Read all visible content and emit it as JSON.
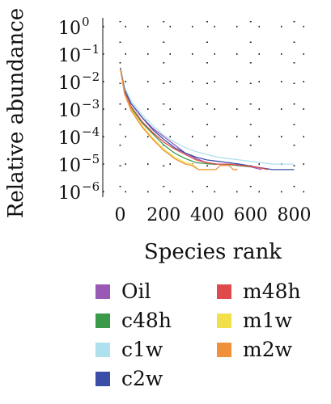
{
  "chart_data": {
    "type": "line",
    "xlabel": "Species rank",
    "ylabel": "Relative abundance",
    "x_ticks": [
      0,
      200,
      400,
      600,
      800
    ],
    "y_ticks": [
      {
        "value": 0,
        "base": "10",
        "exp": "0"
      },
      {
        "value": -1,
        "base": "10",
        "exp": "−1"
      },
      {
        "value": -2,
        "base": "10",
        "exp": "−2"
      },
      {
        "value": -3,
        "base": "10",
        "exp": "−3"
      },
      {
        "value": -4,
        "base": "10",
        "exp": "−4"
      },
      {
        "value": -5,
        "base": "10",
        "exp": "−5"
      },
      {
        "value": -6,
        "base": "10",
        "exp": "−6"
      }
    ],
    "x_range": [
      -80,
      880
    ],
    "y_scale": "log",
    "y_range_log10": [
      -6.2,
      0.2
    ],
    "grid": "dotted",
    "legend_position": "bottom",
    "series": [
      {
        "name": "Oil",
        "color": "#9b59b6",
        "points": [
          [
            1,
            -1.5
          ],
          [
            20,
            -2.3
          ],
          [
            50,
            -2.8
          ],
          [
            100,
            -3.3
          ],
          [
            150,
            -3.7
          ],
          [
            200,
            -4.0
          ],
          [
            250,
            -4.3
          ],
          [
            300,
            -4.6
          ],
          [
            350,
            -4.8
          ],
          [
            400,
            -4.95
          ],
          [
            430,
            -5.0
          ],
          [
            500,
            -5.0
          ],
          [
            560,
            -5.05
          ],
          [
            600,
            -5.1
          ],
          [
            650,
            -5.2
          ]
        ]
      },
      {
        "name": "c48h",
        "color": "#3a9a4a",
        "points": [
          [
            1,
            -1.55
          ],
          [
            20,
            -2.4
          ],
          [
            50,
            -2.95
          ],
          [
            100,
            -3.5
          ],
          [
            150,
            -3.9
          ],
          [
            200,
            -4.3
          ],
          [
            250,
            -4.6
          ],
          [
            300,
            -4.8
          ],
          [
            350,
            -4.95
          ],
          [
            420,
            -5.0
          ],
          [
            480,
            -5.0
          ],
          [
            540,
            -5.05
          ],
          [
            600,
            -5.1
          ]
        ]
      },
      {
        "name": "c1w",
        "color": "#aee0ee",
        "points": [
          [
            1,
            -1.5
          ],
          [
            20,
            -2.2
          ],
          [
            50,
            -2.7
          ],
          [
            100,
            -3.2
          ],
          [
            150,
            -3.6
          ],
          [
            200,
            -3.95
          ],
          [
            250,
            -4.2
          ],
          [
            300,
            -4.4
          ],
          [
            350,
            -4.55
          ],
          [
            400,
            -4.65
          ],
          [
            450,
            -4.75
          ],
          [
            500,
            -4.8
          ],
          [
            550,
            -4.85
          ],
          [
            600,
            -4.9
          ],
          [
            650,
            -4.95
          ],
          [
            700,
            -5.0
          ],
          [
            800,
            -5.0
          ]
        ]
      },
      {
        "name": "c2w",
        "color": "#3a4ea8",
        "points": [
          [
            1,
            -1.5
          ],
          [
            20,
            -2.3
          ],
          [
            50,
            -2.8
          ],
          [
            100,
            -3.3
          ],
          [
            150,
            -3.75
          ],
          [
            200,
            -4.1
          ],
          [
            250,
            -4.4
          ],
          [
            300,
            -4.6
          ],
          [
            350,
            -4.75
          ],
          [
            400,
            -4.85
          ],
          [
            450,
            -4.9
          ],
          [
            500,
            -4.95
          ],
          [
            550,
            -5.0
          ],
          [
            620,
            -5.1
          ],
          [
            700,
            -5.2
          ],
          [
            800,
            -5.2
          ]
        ]
      },
      {
        "name": "m48h",
        "color": "#e04a4a",
        "points": [
          [
            1,
            -1.55
          ],
          [
            20,
            -2.4
          ],
          [
            50,
            -2.9
          ],
          [
            100,
            -3.45
          ],
          [
            150,
            -3.85
          ],
          [
            200,
            -4.2
          ],
          [
            250,
            -4.45
          ],
          [
            300,
            -4.65
          ],
          [
            350,
            -4.85
          ],
          [
            400,
            -4.95
          ],
          [
            450,
            -5.0
          ],
          [
            500,
            -5.0
          ],
          [
            560,
            -5.05
          ],
          [
            620,
            -5.1
          ],
          [
            680,
            -5.2
          ]
        ]
      },
      {
        "name": "m1w",
        "color": "#f1e04a",
        "points": [
          [
            1,
            -1.55
          ],
          [
            20,
            -2.45
          ],
          [
            50,
            -3.0
          ],
          [
            100,
            -3.6
          ],
          [
            150,
            -4.05
          ],
          [
            200,
            -4.45
          ],
          [
            250,
            -4.75
          ],
          [
            300,
            -4.95
          ],
          [
            330,
            -5.0
          ],
          [
            360,
            -5.2
          ],
          [
            420,
            -5.2
          ]
        ]
      },
      {
        "name": "m2w",
        "color": "#f0903a",
        "points": [
          [
            1,
            -1.55
          ],
          [
            20,
            -2.45
          ],
          [
            50,
            -3.05
          ],
          [
            100,
            -3.65
          ],
          [
            150,
            -4.1
          ],
          [
            200,
            -4.5
          ],
          [
            250,
            -4.8
          ],
          [
            300,
            -5.0
          ],
          [
            330,
            -5.05
          ],
          [
            360,
            -5.2
          ],
          [
            440,
            -5.2
          ],
          [
            460,
            -5.05
          ],
          [
            500,
            -5.05
          ],
          [
            520,
            -5.2
          ],
          [
            540,
            -5.2
          ]
        ]
      }
    ]
  },
  "legend": {
    "items": [
      {
        "name": "Oil",
        "color": "#9b59b6"
      },
      {
        "name": "c48h",
        "color": "#3a9a4a"
      },
      {
        "name": "c1w",
        "color": "#aee0ee"
      },
      {
        "name": "c2w",
        "color": "#3a4ea8"
      },
      {
        "name": "m48h",
        "color": "#e04a4a"
      },
      {
        "name": "m1w",
        "color": "#f1e04a"
      },
      {
        "name": "m2w",
        "color": "#f0903a"
      }
    ]
  }
}
